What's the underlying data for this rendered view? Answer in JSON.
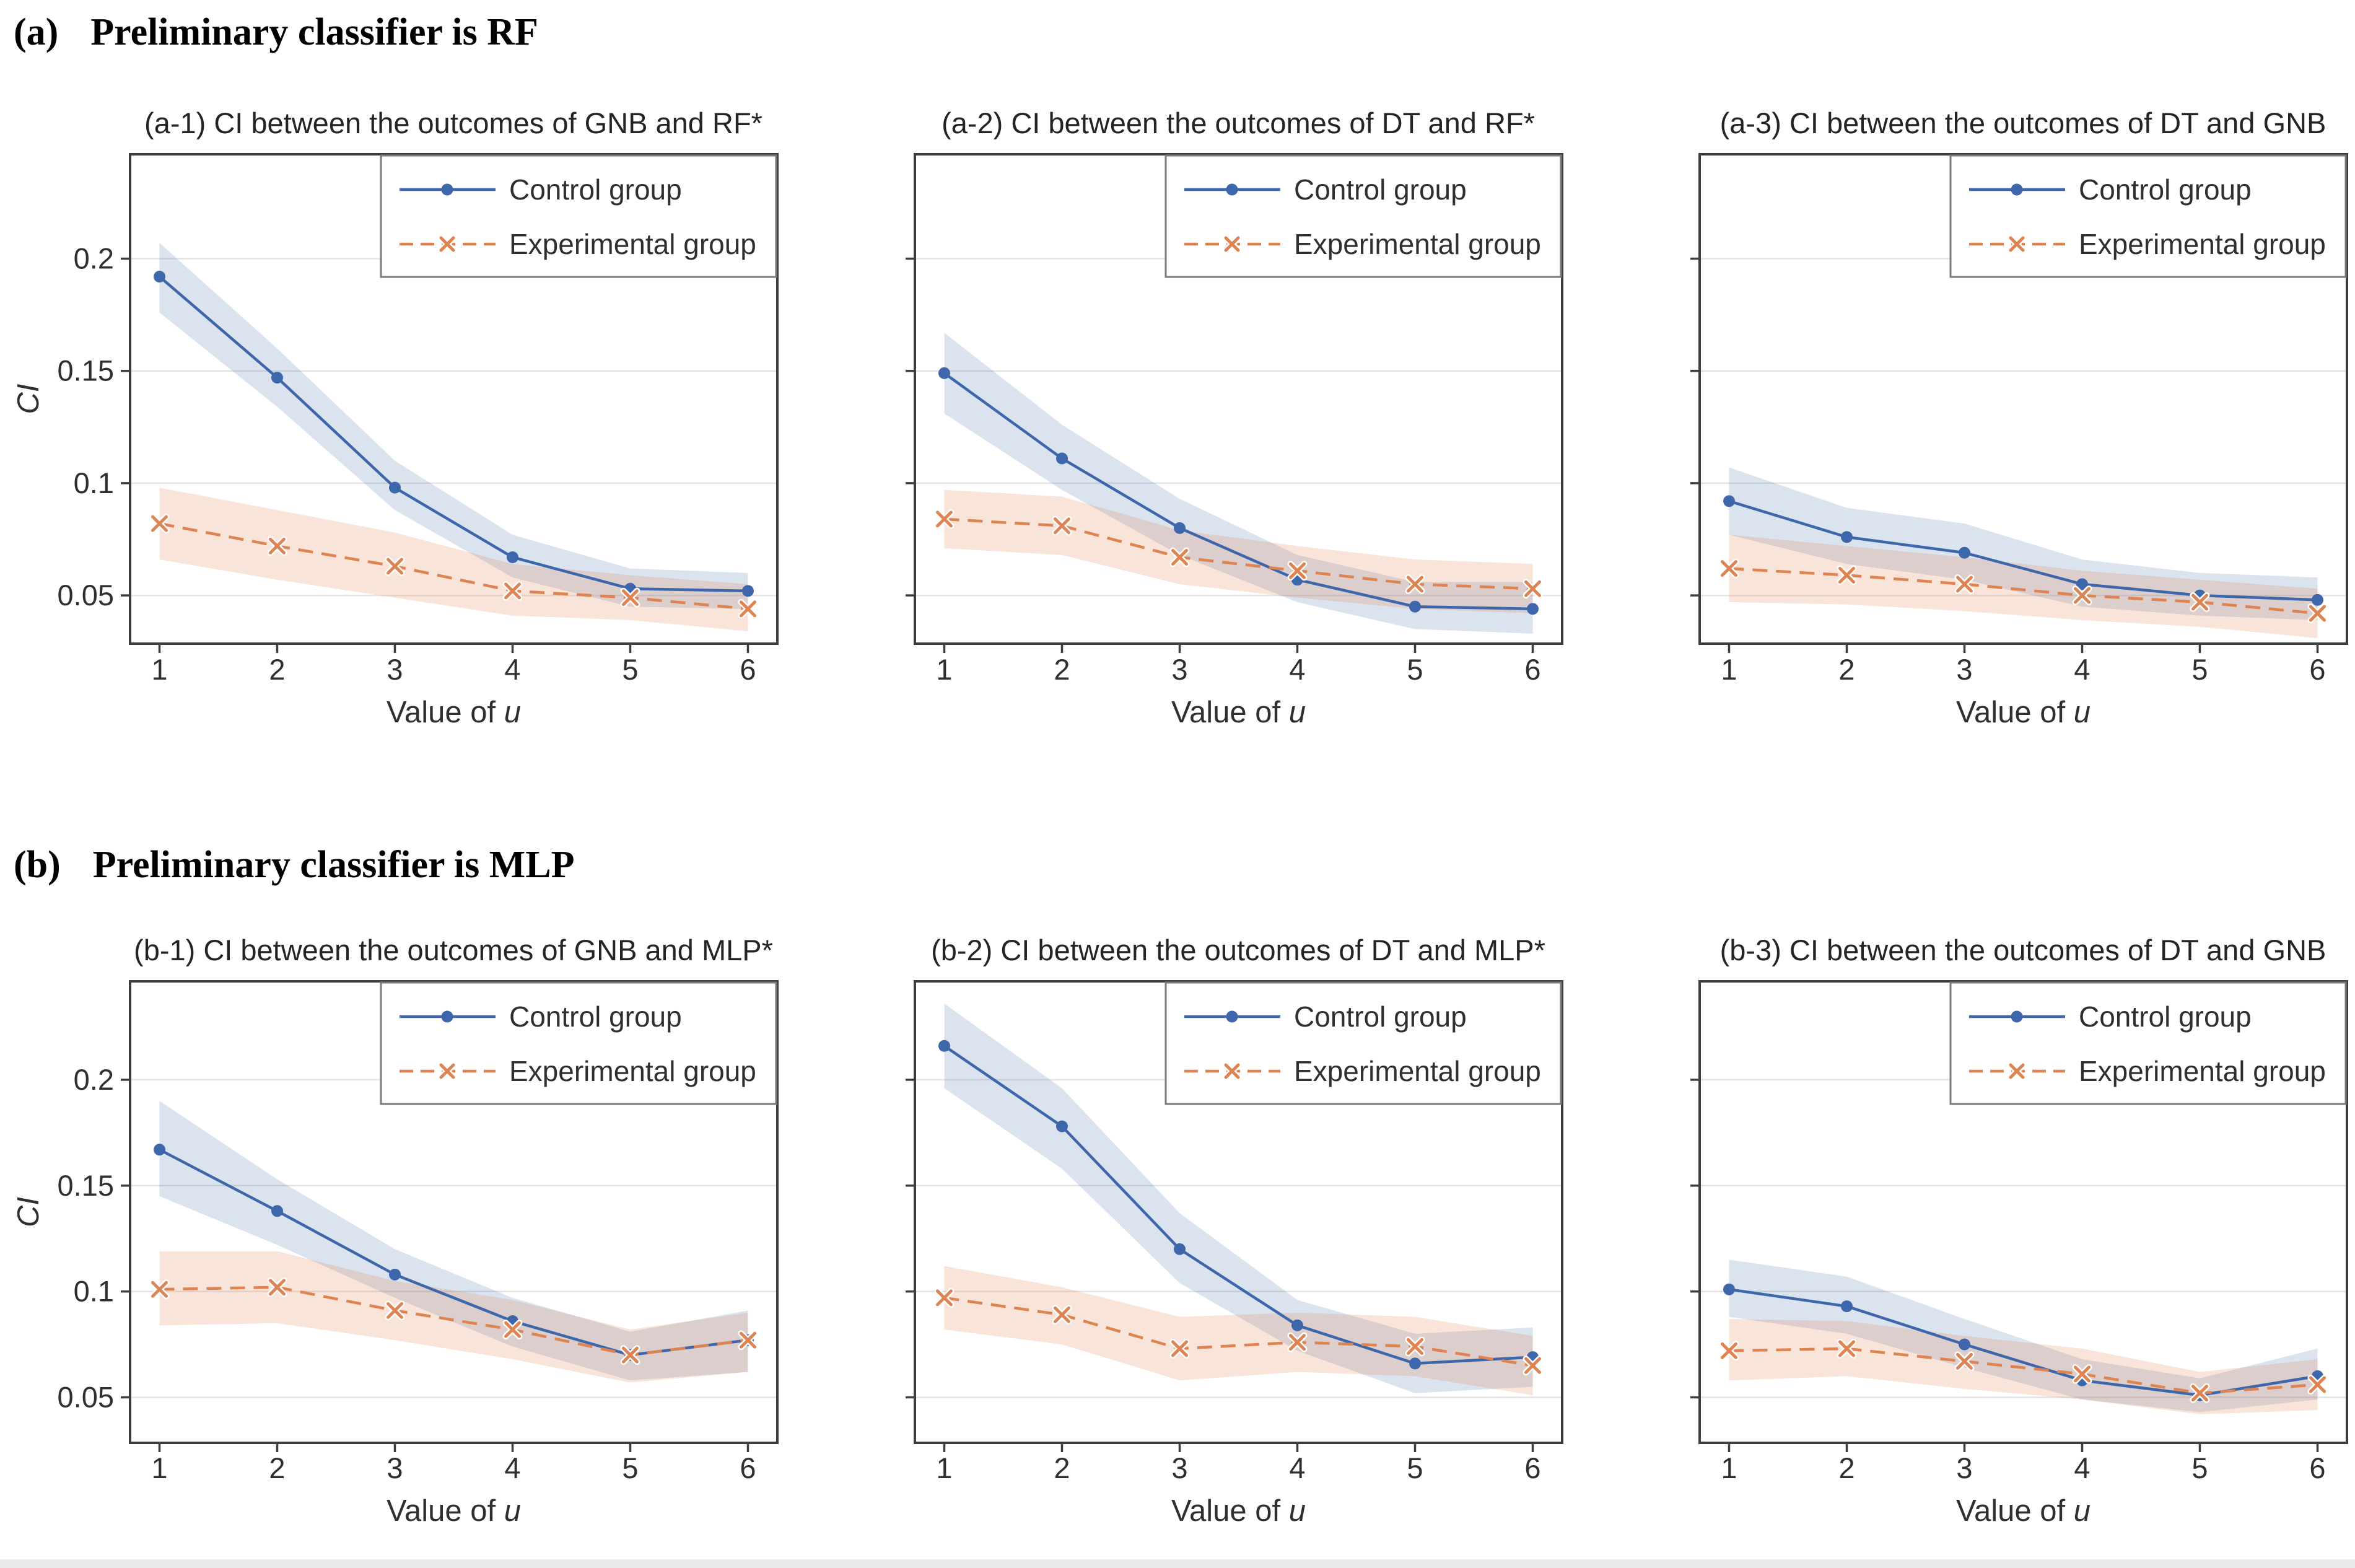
{
  "page": {
    "background": "#ffffff",
    "bottom_strip_color": "#e9eaec"
  },
  "sections": [
    {
      "id": "a",
      "label": "(a)",
      "heading": "Preliminary classifier is RF"
    },
    {
      "id": "b",
      "label": "(b)",
      "heading": "Preliminary classifier is MLP"
    }
  ],
  "legend": {
    "position": "upper right",
    "control_label": "Control group",
    "experimental_label": "Experimental group"
  },
  "colors": {
    "control_line": "#3E66AB",
    "control_band": "rgba(76,114,176,0.20)",
    "experimental_line": "#DE8452",
    "experimental_band": "rgba(221,132,82,0.22)",
    "gridline": "#e4e4e4",
    "spine": "#3d3d3d",
    "tick_text": "#2f2f2f",
    "title_text": "#242424",
    "legend_border": "#7a7a7a"
  },
  "axes": {
    "xlabel_prefix": "Value of ",
    "xlabel_var": "u",
    "ylabel": "CI",
    "xticks": [
      1,
      2,
      3,
      4,
      5,
      6
    ],
    "xtick_labels": [
      "1",
      "2",
      "3",
      "4",
      "5",
      "6"
    ],
    "yticks": [
      0.05,
      0.1,
      0.15,
      0.2
    ],
    "ytick_labels": [
      "0.05",
      "0.1",
      "0.15",
      "0.2"
    ],
    "xlim": [
      0.75,
      6.25
    ],
    "ylim": [
      0.0285,
      0.2465
    ],
    "grid": "horizontal only"
  },
  "chart_data": [
    {
      "type": "line",
      "section": "a",
      "title": "(a-1) CI between the outcomes of GNB and RF*",
      "show_y_labels": true,
      "x": [
        1,
        2,
        3,
        4,
        5,
        6
      ],
      "series": [
        {
          "name": "Control group",
          "values": [
            0.192,
            0.147,
            0.098,
            0.067,
            0.053,
            0.052
          ],
          "ci_lower": [
            0.176,
            0.134,
            0.088,
            0.058,
            0.045,
            0.044
          ],
          "ci_upper": [
            0.207,
            0.16,
            0.11,
            0.077,
            0.062,
            0.06
          ]
        },
        {
          "name": "Experimental group",
          "values": [
            0.082,
            0.072,
            0.063,
            0.052,
            0.049,
            0.044
          ],
          "ci_lower": [
            0.066,
            0.057,
            0.049,
            0.041,
            0.039,
            0.034
          ],
          "ci_upper": [
            0.098,
            0.088,
            0.078,
            0.064,
            0.059,
            0.055
          ]
        }
      ]
    },
    {
      "type": "line",
      "section": "a",
      "title": "(a-2) CI between the outcomes of DT and RF*",
      "show_y_labels": false,
      "x": [
        1,
        2,
        3,
        4,
        5,
        6
      ],
      "series": [
        {
          "name": "Control group",
          "values": [
            0.149,
            0.111,
            0.08,
            0.057,
            0.045,
            0.044
          ],
          "ci_lower": [
            0.131,
            0.097,
            0.068,
            0.047,
            0.035,
            0.033
          ],
          "ci_upper": [
            0.167,
            0.126,
            0.093,
            0.068,
            0.056,
            0.056
          ]
        },
        {
          "name": "Experimental group",
          "values": [
            0.084,
            0.081,
            0.067,
            0.061,
            0.055,
            0.053
          ],
          "ci_lower": [
            0.071,
            0.068,
            0.055,
            0.049,
            0.044,
            0.042
          ],
          "ci_upper": [
            0.097,
            0.094,
            0.079,
            0.072,
            0.066,
            0.064
          ]
        }
      ]
    },
    {
      "type": "line",
      "section": "a",
      "title": "(a-3) CI between the outcomes of DT and GNB",
      "show_y_labels": false,
      "x": [
        1,
        2,
        3,
        4,
        5,
        6
      ],
      "series": [
        {
          "name": "Control group",
          "values": [
            0.092,
            0.076,
            0.069,
            0.055,
            0.05,
            0.048
          ],
          "ci_lower": [
            0.077,
            0.064,
            0.057,
            0.045,
            0.041,
            0.039
          ],
          "ci_upper": [
            0.107,
            0.089,
            0.082,
            0.066,
            0.06,
            0.058
          ]
        },
        {
          "name": "Experimental group",
          "values": [
            0.062,
            0.059,
            0.055,
            0.05,
            0.047,
            0.042
          ],
          "ci_lower": [
            0.047,
            0.046,
            0.043,
            0.039,
            0.036,
            0.031
          ],
          "ci_upper": [
            0.077,
            0.072,
            0.067,
            0.061,
            0.057,
            0.053
          ]
        }
      ]
    },
    {
      "type": "line",
      "section": "b",
      "title": "(b-1) CI between the outcomes of GNB and MLP*",
      "show_y_labels": true,
      "x": [
        1,
        2,
        3,
        4,
        5,
        6
      ],
      "series": [
        {
          "name": "Control group",
          "values": [
            0.167,
            0.138,
            0.108,
            0.086,
            0.07,
            0.077
          ],
          "ci_lower": [
            0.145,
            0.122,
            0.097,
            0.074,
            0.058,
            0.062
          ],
          "ci_upper": [
            0.19,
            0.153,
            0.12,
            0.097,
            0.081,
            0.091
          ]
        },
        {
          "name": "Experimental group",
          "values": [
            0.101,
            0.102,
            0.091,
            0.082,
            0.07,
            0.077
          ],
          "ci_lower": [
            0.084,
            0.085,
            0.077,
            0.068,
            0.057,
            0.062
          ],
          "ci_upper": [
            0.119,
            0.119,
            0.105,
            0.096,
            0.082,
            0.09
          ]
        }
      ]
    },
    {
      "type": "line",
      "section": "b",
      "title": "(b-2) CI between the outcomes of DT and MLP*",
      "show_y_labels": false,
      "x": [
        1,
        2,
        3,
        4,
        5,
        6
      ],
      "series": [
        {
          "name": "Control group",
          "values": [
            0.216,
            0.178,
            0.12,
            0.084,
            0.066,
            0.069
          ],
          "ci_lower": [
            0.196,
            0.158,
            0.104,
            0.072,
            0.052,
            0.055
          ],
          "ci_upper": [
            0.236,
            0.196,
            0.137,
            0.096,
            0.08,
            0.083
          ]
        },
        {
          "name": "Experimental group",
          "values": [
            0.097,
            0.089,
            0.073,
            0.076,
            0.074,
            0.065
          ],
          "ci_lower": [
            0.082,
            0.075,
            0.058,
            0.062,
            0.06,
            0.051
          ],
          "ci_upper": [
            0.112,
            0.102,
            0.088,
            0.09,
            0.088,
            0.079
          ]
        }
      ]
    },
    {
      "type": "line",
      "section": "b",
      "title": "(b-3) CI between the outcomes of DT and GNB",
      "show_y_labels": false,
      "x": [
        1,
        2,
        3,
        4,
        5,
        6
      ],
      "series": [
        {
          "name": "Control group",
          "values": [
            0.101,
            0.093,
            0.075,
            0.058,
            0.051,
            0.06
          ],
          "ci_lower": [
            0.088,
            0.08,
            0.064,
            0.049,
            0.043,
            0.049
          ],
          "ci_upper": [
            0.115,
            0.107,
            0.087,
            0.068,
            0.059,
            0.073
          ]
        },
        {
          "name": "Experimental group",
          "values": [
            0.072,
            0.073,
            0.067,
            0.061,
            0.052,
            0.056
          ],
          "ci_lower": [
            0.058,
            0.06,
            0.054,
            0.049,
            0.042,
            0.044
          ],
          "ci_upper": [
            0.087,
            0.086,
            0.079,
            0.073,
            0.062,
            0.068
          ]
        }
      ]
    }
  ]
}
